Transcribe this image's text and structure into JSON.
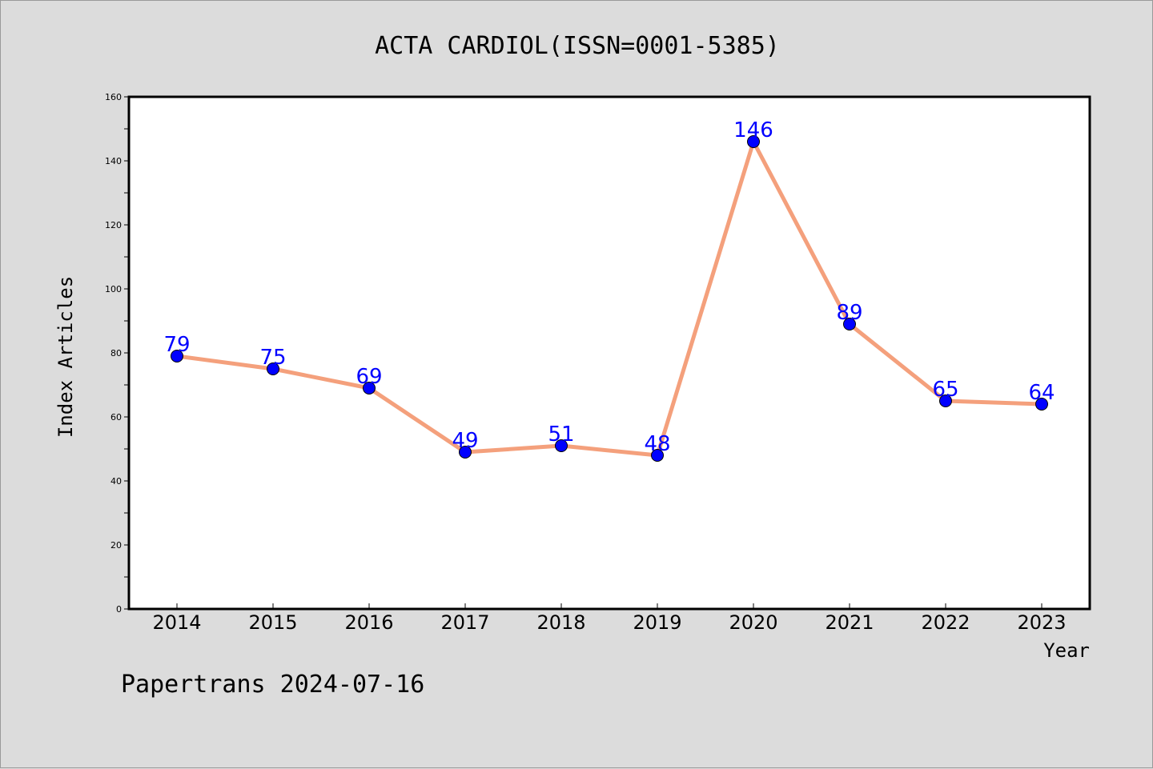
{
  "chart_data": {
    "type": "line",
    "title": "ACTA CARDIOL(ISSN=0001-5385)",
    "xlabel": "Year",
    "ylabel": "Index Articles",
    "categories": [
      "2014",
      "2015",
      "2016",
      "2017",
      "2018",
      "2019",
      "2020",
      "2021",
      "2022",
      "2023"
    ],
    "series": [
      {
        "values": [
          79,
          75,
          69,
          49,
          51,
          48,
          146,
          89,
          65,
          64
        ]
      }
    ],
    "ylim": [
      0,
      160
    ],
    "yticks": [
      0,
      20,
      40,
      60,
      80,
      100,
      120,
      140,
      160
    ],
    "grid": false,
    "line_color": "#f4a07c",
    "marker_color": "#0000ff",
    "label_color": "#0000ff"
  },
  "footer": "Papertrans 2024-07-16"
}
